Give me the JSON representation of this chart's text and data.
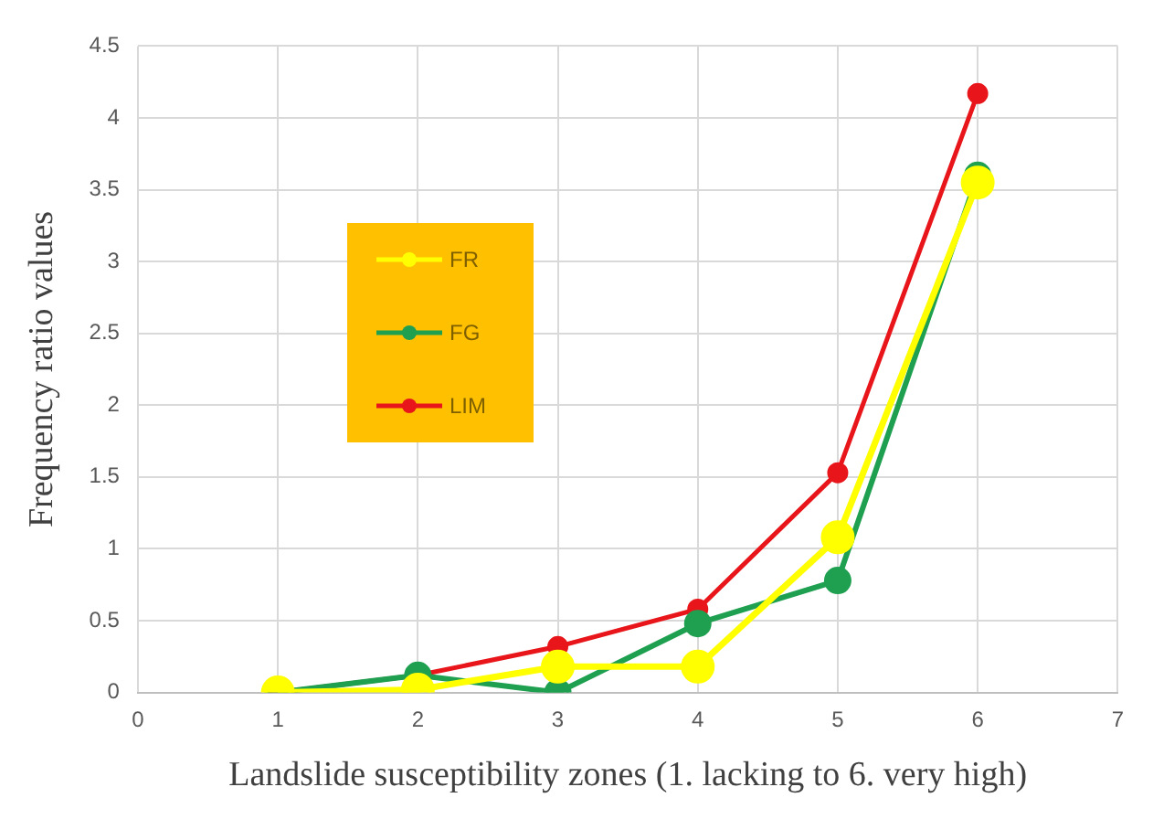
{
  "chart_data": {
    "type": "line",
    "xlabel": "Landslide susceptibility zones (1. lacking to 6. very high)",
    "ylabel": "Frequency ratio values",
    "x": [
      1,
      2,
      3,
      4,
      5,
      6
    ],
    "series": [
      {
        "name": "FR",
        "color": "#ffff00",
        "values": [
          0,
          0.02,
          0.18,
          0.18,
          1.08,
          3.55
        ]
      },
      {
        "name": "FG",
        "color": "#1fa050",
        "values": [
          0,
          0.12,
          0,
          0.48,
          0.78,
          3.6
        ]
      },
      {
        "name": "LIM",
        "color": "#e8161a",
        "values": [
          0,
          0.12,
          0.32,
          0.58,
          1.53,
          4.17
        ]
      }
    ],
    "xlim": [
      0,
      7
    ],
    "xticks": [
      0,
      1,
      2,
      3,
      4,
      5,
      6,
      7
    ],
    "ylim": [
      0,
      4.5
    ],
    "yticks": [
      0,
      0.5,
      1,
      1.5,
      2,
      2.5,
      3,
      3.5,
      4,
      4.5
    ],
    "grid": true,
    "legend": "left",
    "marker": "circle",
    "line_style": "solid"
  }
}
